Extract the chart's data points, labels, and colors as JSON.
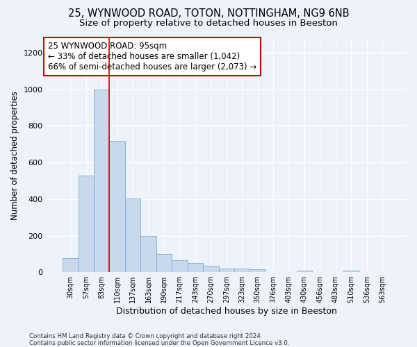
{
  "title1": "25, WYNWOOD ROAD, TOTON, NOTTINGHAM, NG9 6NB",
  "title2": "Size of property relative to detached houses in Beeston",
  "xlabel": "Distribution of detached houses by size in Beeston",
  "ylabel": "Number of detached properties",
  "categories": [
    "30sqm",
    "57sqm",
    "83sqm",
    "110sqm",
    "137sqm",
    "163sqm",
    "190sqm",
    "217sqm",
    "243sqm",
    "270sqm",
    "297sqm",
    "323sqm",
    "350sqm",
    "376sqm",
    "403sqm",
    "430sqm",
    "456sqm",
    "483sqm",
    "510sqm",
    "536sqm",
    "563sqm"
  ],
  "values": [
    75,
    530,
    1000,
    720,
    405,
    200,
    100,
    65,
    50,
    35,
    20,
    20,
    15,
    0,
    0,
    10,
    0,
    0,
    10,
    0,
    0
  ],
  "bar_color": "#c8d9ee",
  "bar_edge_color": "#7bafd4",
  "redline_x": 2.5,
  "annotation_text": "25 WYNWOOD ROAD: 95sqm\n← 33% of detached houses are smaller (1,042)\n66% of semi-detached houses are larger (2,073) →",
  "annotation_box_color": "#ffffff",
  "annotation_box_edge_color": "#cc0000",
  "footer1": "Contains HM Land Registry data © Crown copyright and database right 2024.",
  "footer2": "Contains public sector information licensed under the Open Government Licence v3.0.",
  "ylim": [
    0,
    1280
  ],
  "yticks": [
    0,
    200,
    400,
    600,
    800,
    1000,
    1200
  ],
  "bg_color": "#eef2fa",
  "grid_color": "#ffffff",
  "title_fontsize": 10.5,
  "subtitle_fontsize": 9.5,
  "annotation_fontsize": 8.5,
  "xlabel_fontsize": 9,
  "ylabel_fontsize": 8.5,
  "xtick_fontsize": 7,
  "ytick_fontsize": 8
}
